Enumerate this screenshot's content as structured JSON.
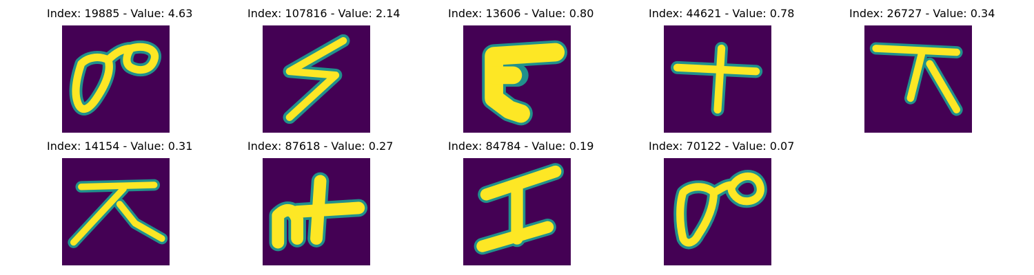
{
  "colors": {
    "background": "#440154",
    "stroke_core": "#fde725",
    "stroke_mid": "#5ec962",
    "stroke_edge": "#21918c"
  },
  "panels": [
    {
      "index": "19885",
      "value": "4.63",
      "title": "Index: 19885 - Value: 4.63",
      "glyph": "loop-figure-icon"
    },
    {
      "index": "107816",
      "value": "2.14",
      "title": "Index: 107816 - Value: 2.14",
      "glyph": "lightning-glyph-icon"
    },
    {
      "index": "13606",
      "value": "0.80",
      "title": "Index: 13606 - Value: 0.80",
      "glyph": "bracket-glyph-icon"
    },
    {
      "index": "44621",
      "value": "0.78",
      "title": "Index: 44621 - Value: 0.78",
      "glyph": "cross-glyph-icon"
    },
    {
      "index": "26727",
      "value": "0.34",
      "title": "Index: 26727 - Value: 0.34",
      "glyph": "bar-legs-glyph-icon"
    },
    {
      "index": "14154",
      "value": "0.31",
      "title": "Index: 14154 - Value: 0.31",
      "glyph": "bar-legs-glyph-icon"
    },
    {
      "index": "87618",
      "value": "0.27",
      "title": "Index: 87618 - Value: 0.27",
      "glyph": "hook-cross-glyph-icon"
    },
    {
      "index": "84784",
      "value": "0.19",
      "title": "Index: 84784 - Value: 0.19",
      "glyph": "i-beam-glyph-icon"
    },
    {
      "index": "70122",
      "value": "0.07",
      "title": "Index: 70122 - Value: 0.07",
      "glyph": "loop-figure-icon"
    }
  ]
}
